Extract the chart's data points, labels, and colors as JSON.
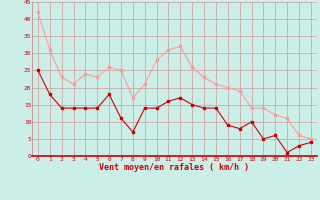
{
  "hours": [
    0,
    1,
    2,
    3,
    4,
    5,
    6,
    7,
    8,
    9,
    10,
    11,
    12,
    13,
    14,
    15,
    16,
    17,
    18,
    19,
    20,
    21,
    22,
    23
  ],
  "wind_avg": [
    25,
    18,
    14,
    14,
    14,
    14,
    18,
    11,
    7,
    14,
    14,
    16,
    17,
    15,
    14,
    14,
    9,
    8,
    10,
    5,
    6,
    1,
    3,
    4
  ],
  "wind_gust": [
    42,
    31,
    23,
    21,
    24,
    23,
    26,
    25,
    17,
    21,
    28,
    31,
    32,
    26,
    23,
    21,
    20,
    19,
    14,
    14,
    12,
    11,
    6,
    5
  ],
  "line_avg_color": "#cc0000",
  "line_gust_color": "#ff9999",
  "marker_avg_color": "#cc0000",
  "marker_gust_color": "#ff9999",
  "bg_color": "#cceee8",
  "grid_color": "#cc9999",
  "axis_label_color": "#cc0000",
  "tick_label_color": "#cc0000",
  "xlabel": "Vent moyen/en rafales ( km/h )",
  "ylim": [
    0,
    45
  ],
  "yticks": [
    0,
    5,
    10,
    15,
    20,
    25,
    30,
    35,
    40,
    45
  ],
  "xlim": [
    -0.5,
    23.5
  ],
  "xticks": [
    0,
    1,
    2,
    3,
    4,
    5,
    6,
    7,
    8,
    9,
    10,
    11,
    12,
    13,
    14,
    15,
    16,
    17,
    18,
    19,
    20,
    21,
    22,
    23
  ]
}
